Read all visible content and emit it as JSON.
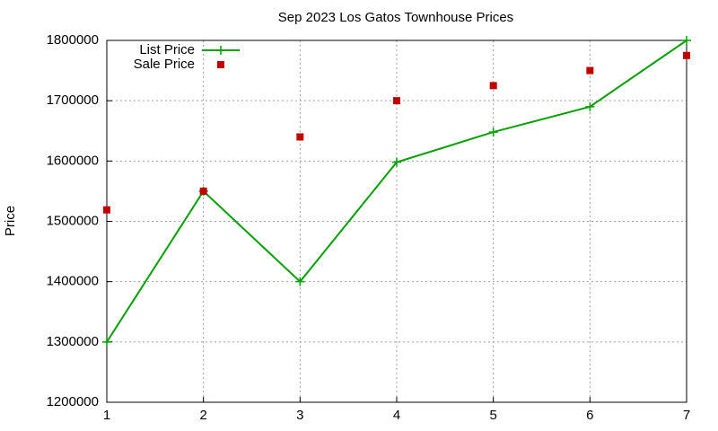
{
  "chart_data": {
    "type": "line",
    "title": "Sep 2023 Los Gatos Townhouse Prices",
    "y_label": "Price",
    "x": [
      1,
      2,
      3,
      4,
      5,
      6,
      7
    ],
    "series": [
      {
        "name": "List Price",
        "color": "#00a000",
        "style": "linespoints",
        "values": [
          1300000,
          1550000,
          1400000,
          1598000,
          1648000,
          1690000,
          1800000
        ]
      },
      {
        "name": "Sale Price",
        "color": "#c00000",
        "style": "points",
        "values": [
          1519000,
          1550000,
          1640000,
          1700000,
          1725000,
          1750000,
          1775000
        ]
      }
    ],
    "xlim": [
      1,
      7
    ],
    "xticks": [
      1,
      2,
      3,
      4,
      5,
      6,
      7
    ],
    "ylim": [
      1200000,
      1800000
    ],
    "yticks": [
      1200000,
      1300000,
      1400000,
      1500000,
      1600000,
      1700000,
      1800000
    ],
    "grid": true,
    "legend": "top-left"
  }
}
